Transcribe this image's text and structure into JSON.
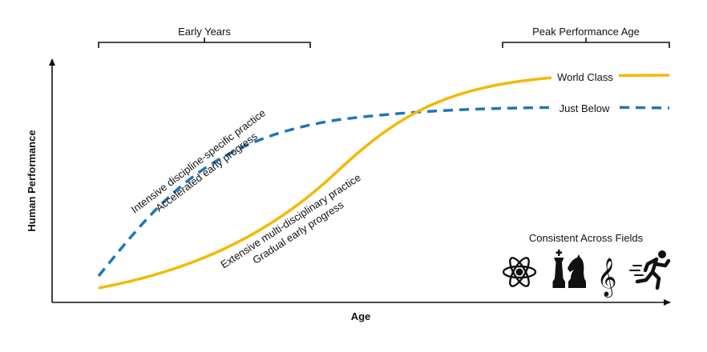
{
  "brackets": {
    "early_years": "Early Years",
    "peak_age": "Peak Performance Age"
  },
  "axes": {
    "ylabel": "Human Performance",
    "xlabel": "Age"
  },
  "curves": {
    "world_class": {
      "label": "World Class",
      "color": "#f5b800"
    },
    "just_below": {
      "label": "Just Below",
      "color": "#1f77b4"
    }
  },
  "annotations": {
    "specific_line1": "Intensive discipline-specific practice",
    "specific_line2": "Accelerated early progress",
    "multi_line1": "Extensive multi-disciplinary practice",
    "multi_line2": "Gradual early progress"
  },
  "fields": {
    "title": "Consistent Across Fields",
    "icons": [
      "atom-icon",
      "chess-pieces-icon",
      "treble-clef-icon",
      "runner-icon"
    ]
  }
}
